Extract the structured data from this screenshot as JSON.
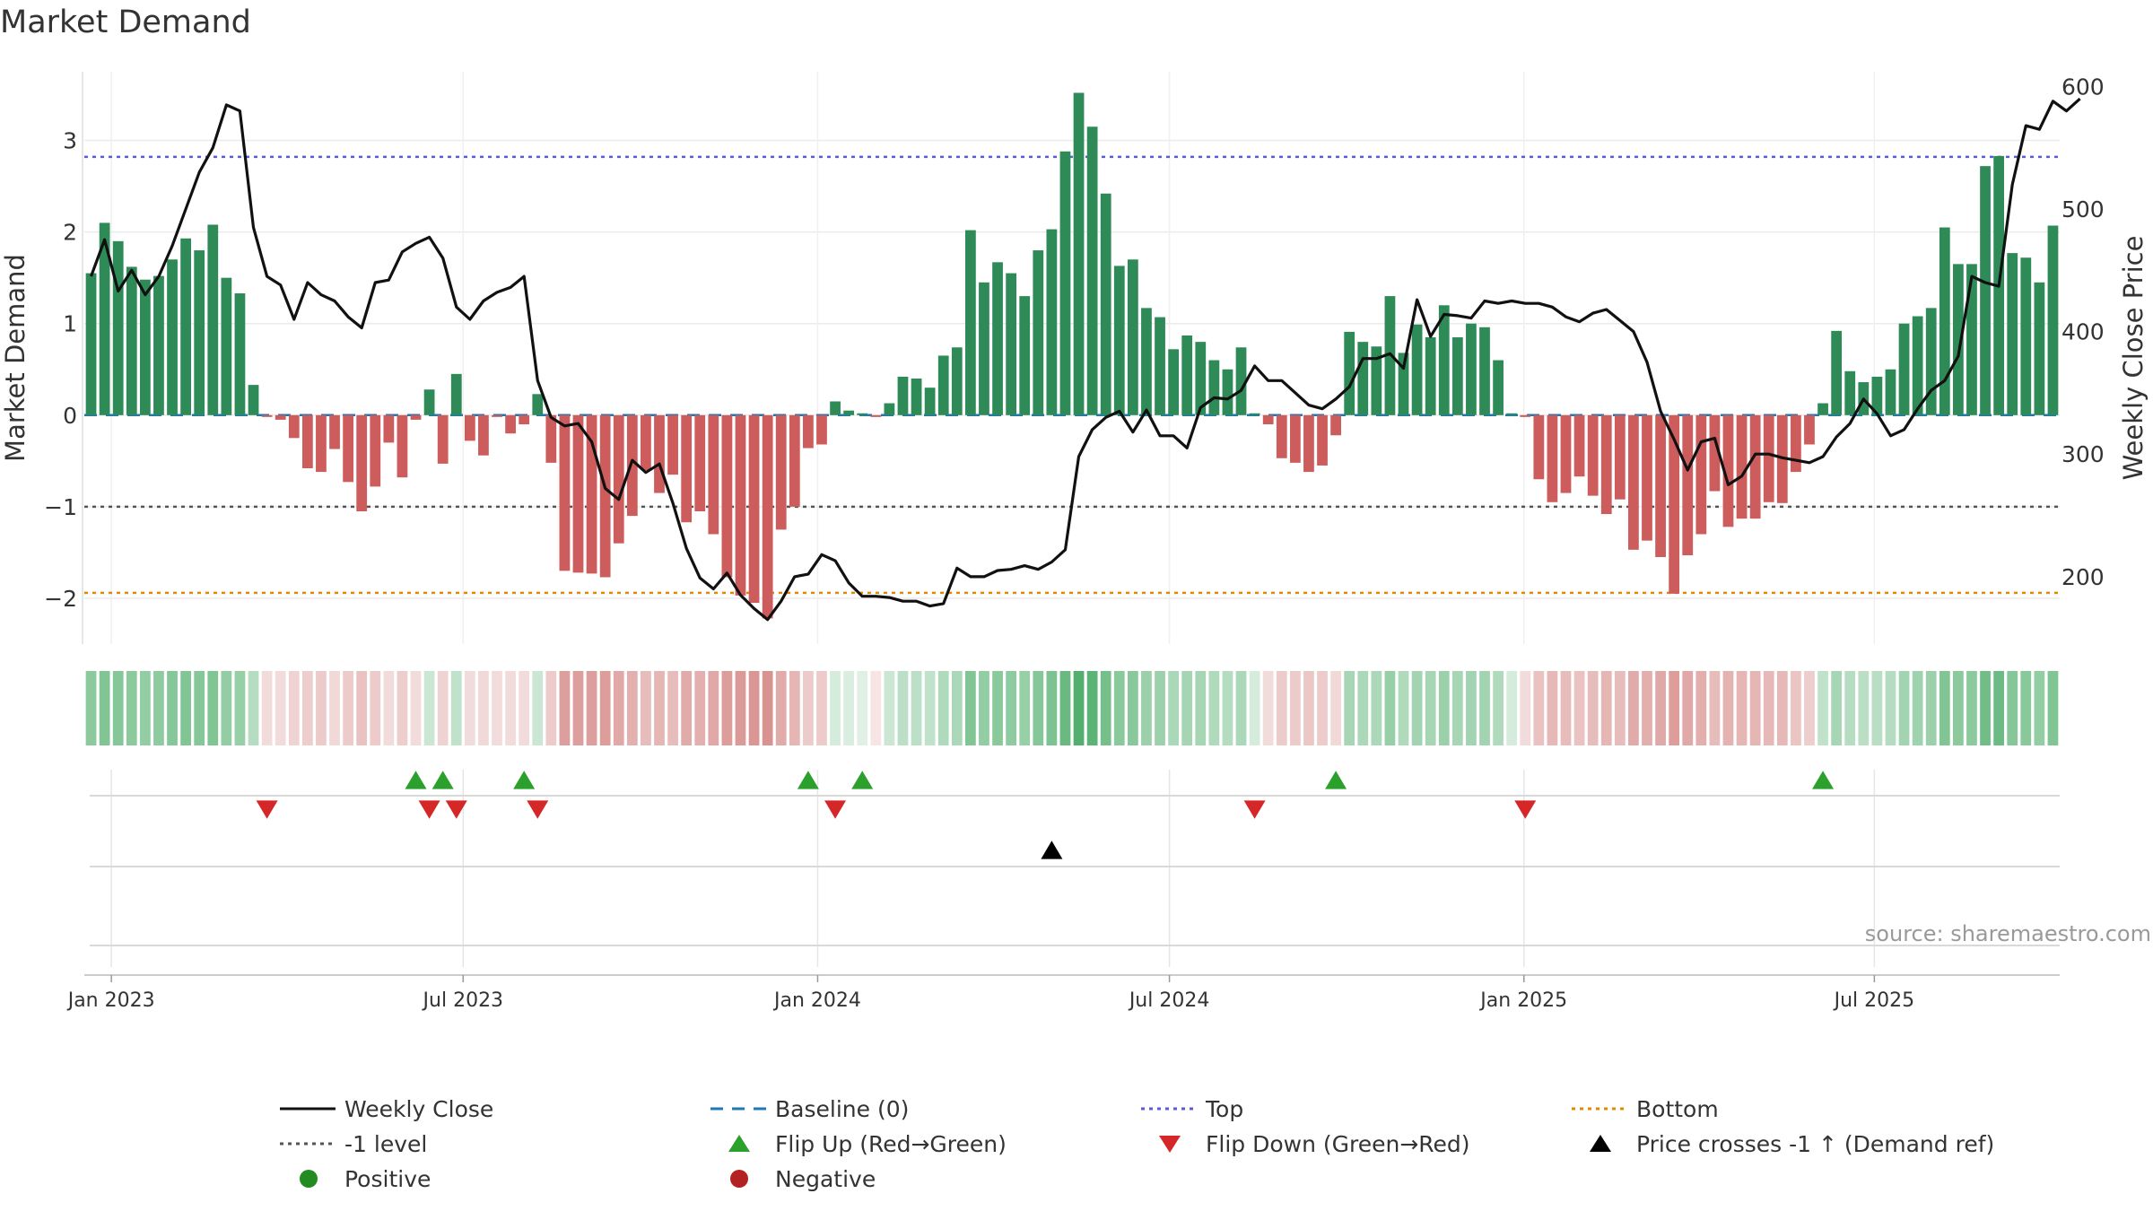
{
  "chart_data": {
    "type": "bar",
    "title": "Market Demand",
    "ylabel_left": "Market Demand",
    "ylabel_right": "Weekly Close Price",
    "ylim_left": [
      -2.5,
      3.75
    ],
    "ylim_right": [
      145,
      612
    ],
    "yticks_left": [
      {
        "value": 3,
        "label": "3"
      },
      {
        "value": 2,
        "label": "2"
      },
      {
        "value": 1,
        "label": "1"
      },
      {
        "value": 0,
        "label": "0"
      },
      {
        "value": -1,
        "label": "−1"
      },
      {
        "value": -2,
        "label": "−2"
      }
    ],
    "yticks_right": [
      {
        "value": 600,
        "label": "600"
      },
      {
        "value": 500,
        "label": "500"
      },
      {
        "value": 400,
        "label": "400"
      },
      {
        "value": 300,
        "label": "300"
      },
      {
        "value": 200,
        "label": "200"
      }
    ],
    "xticks": [
      {
        "index": 1.5,
        "label": "Jan 2023"
      },
      {
        "index": 27.5,
        "label": "Jul 2023"
      },
      {
        "index": 53.7,
        "label": "Jan 2024"
      },
      {
        "index": 79.7,
        "label": "Jul 2024"
      },
      {
        "index": 105.9,
        "label": "Jan 2025"
      },
      {
        "index": 131.8,
        "label": "Jul 2025"
      }
    ],
    "reference_lines": {
      "top": 2.82,
      "minus_one": -1,
      "bottom": -1.94,
      "baseline": 0
    },
    "colors": {
      "positive": "#2e8b57",
      "negative": "#cd5c5c",
      "close": "#111111",
      "baseline": "#1f77b4",
      "top": "#5b5bd6",
      "minus_one": "#555555",
      "bottom": "#e08a00",
      "flip_up": "#2ca02c",
      "flip_down": "#d62728",
      "cross": "#000000",
      "positive_dot": "#228b22",
      "negative_dot": "#b22222"
    },
    "demand": [
      1.55,
      2.1,
      1.9,
      1.62,
      1.48,
      1.52,
      1.7,
      1.93,
      1.8,
      2.08,
      1.5,
      1.33,
      0.33,
      -0.02,
      -0.05,
      -0.25,
      -0.58,
      -0.62,
      -0.37,
      -0.73,
      -1.05,
      -0.78,
      -0.3,
      -0.68,
      -0.05,
      0.28,
      -0.53,
      0.45,
      -0.28,
      -0.44,
      -0.02,
      -0.2,
      -0.1,
      0.23,
      -0.52,
      -1.7,
      -1.72,
      -1.73,
      -1.77,
      -1.4,
      -1.1,
      -0.6,
      -0.85,
      -0.65,
      -1.17,
      -1.05,
      -1.3,
      -1.77,
      -1.97,
      -2.05,
      -2.22,
      -1.25,
      -1.0,
      -0.36,
      -0.32,
      0.15,
      0.05,
      0.02,
      -0.02,
      0.13,
      0.42,
      0.4,
      0.3,
      0.65,
      0.74,
      2.02,
      1.45,
      1.67,
      1.55,
      1.3,
      1.8,
      2.03,
      2.88,
      3.52,
      3.15,
      2.42,
      1.63,
      1.7,
      1.17,
      1.07,
      0.72,
      0.87,
      0.8,
      0.6,
      0.5,
      0.74,
      0.02,
      -0.1,
      -0.47,
      -0.52,
      -0.62,
      -0.55,
      -0.22,
      0.91,
      0.8,
      0.75,
      1.3,
      0.68,
      0.99,
      0.85,
      1.2,
      0.85,
      1.0,
      0.96,
      0.6,
      0.02,
      -0.02,
      -0.7,
      -0.95,
      -0.85,
      -0.67,
      -0.88,
      -1.08,
      -0.92,
      -1.47,
      -1.37,
      -1.55,
      -1.95,
      -1.53,
      -1.3,
      -0.83,
      -1.22,
      -1.13,
      -1.13,
      -0.95,
      -0.96,
      -0.62,
      -0.32,
      0.13,
      0.92,
      0.48,
      0.36,
      0.42,
      0.5,
      1.0,
      1.08,
      1.17,
      2.05,
      1.65,
      1.65,
      2.72,
      2.83,
      1.77,
      1.72,
      1.45,
      2.07
    ],
    "close": [
      445,
      475,
      433,
      450,
      430,
      445,
      470,
      500,
      530,
      550,
      585,
      580,
      485,
      445,
      438,
      410,
      440,
      430,
      425,
      412,
      403,
      440,
      442,
      465,
      472,
      477,
      460,
      420,
      410,
      425,
      432,
      436,
      445,
      360,
      330,
      323,
      325,
      310,
      272,
      263,
      295,
      285,
      292,
      260,
      223,
      199,
      190,
      203,
      185,
      174,
      165,
      180,
      200,
      202,
      218,
      213,
      195,
      184,
      184,
      183,
      180,
      180,
      176,
      178,
      207,
      200,
      200,
      205,
      206,
      209,
      206,
      212,
      222,
      298,
      320,
      330,
      335,
      318,
      336,
      315,
      315,
      305,
      338,
      346,
      345,
      352,
      372,
      360,
      360,
      350,
      340,
      337,
      345,
      355,
      378,
      378,
      382,
      370,
      426,
      396,
      414,
      413,
      411,
      425,
      423,
      425,
      423,
      423,
      420,
      412,
      408,
      415,
      418,
      409,
      400,
      375,
      335,
      312,
      287,
      310,
      313,
      275,
      282,
      300,
      300,
      297,
      295,
      293,
      298,
      314,
      325,
      345,
      333,
      315,
      320,
      337,
      352,
      360,
      380,
      445,
      440,
      437,
      520,
      568,
      565,
      588,
      580,
      590
    ],
    "heat_intensity": [
      0.55,
      0.6,
      0.58,
      0.55,
      0.52,
      0.54,
      0.58,
      0.6,
      0.58,
      0.6,
      0.52,
      0.5,
      0.35,
      0.2,
      0.2,
      0.25,
      0.28,
      0.3,
      0.22,
      0.3,
      0.35,
      0.3,
      0.2,
      0.28,
      0.2,
      0.25,
      0.25,
      0.3,
      0.2,
      0.22,
      0.2,
      0.2,
      0.2,
      0.25,
      0.3,
      0.55,
      0.55,
      0.55,
      0.56,
      0.5,
      0.45,
      0.38,
      0.42,
      0.38,
      0.48,
      0.45,
      0.5,
      0.56,
      0.58,
      0.6,
      0.62,
      0.48,
      0.42,
      0.3,
      0.3,
      0.2,
      0.18,
      0.15,
      0.15,
      0.25,
      0.32,
      0.32,
      0.3,
      0.38,
      0.4,
      0.6,
      0.52,
      0.56,
      0.54,
      0.5,
      0.58,
      0.62,
      0.72,
      0.82,
      0.78,
      0.66,
      0.56,
      0.57,
      0.48,
      0.47,
      0.4,
      0.43,
      0.42,
      0.38,
      0.36,
      0.4,
      0.2,
      0.2,
      0.3,
      0.3,
      0.32,
      0.3,
      0.22,
      0.42,
      0.4,
      0.4,
      0.5,
      0.38,
      0.44,
      0.42,
      0.48,
      0.42,
      0.44,
      0.44,
      0.38,
      0.2,
      0.2,
      0.35,
      0.4,
      0.38,
      0.35,
      0.38,
      0.42,
      0.38,
      0.48,
      0.46,
      0.5,
      0.56,
      0.5,
      0.46,
      0.38,
      0.44,
      0.42,
      0.42,
      0.4,
      0.4,
      0.33,
      0.28,
      0.3,
      0.42,
      0.35,
      0.33,
      0.34,
      0.36,
      0.44,
      0.46,
      0.48,
      0.6,
      0.55,
      0.55,
      0.68,
      0.7,
      0.58,
      0.57,
      0.52,
      0.6
    ],
    "flip_up_indices": [
      24,
      26,
      32,
      53,
      57,
      92,
      128
    ],
    "flip_down_indices": [
      13,
      25,
      27,
      33,
      55,
      86,
      106
    ],
    "cross_indices": [
      71
    ],
    "legend": [
      {
        "key": "close",
        "label": "Weekly Close",
        "style": "line"
      },
      {
        "key": "baseline",
        "label": "Baseline (0)",
        "style": "dash"
      },
      {
        "key": "top",
        "label": "Top",
        "style": "dot"
      },
      {
        "key": "bottom",
        "label": "Bottom",
        "style": "dot"
      },
      {
        "key": "minus_one",
        "label": "-1 level",
        "style": "dot"
      },
      {
        "key": "flip_up",
        "label": "Flip Up (Red→Green)",
        "style": "tri-up"
      },
      {
        "key": "flip_down",
        "label": "Flip Down (Green→Red)",
        "style": "tri-down"
      },
      {
        "key": "cross",
        "label": "Price crosses -1 ↑ (Demand ref)",
        "style": "tri-up"
      },
      {
        "key": "positive_dot",
        "label": "Positive",
        "style": "dot-marker"
      },
      {
        "key": "negative_dot",
        "label": "Negative",
        "style": "dot-marker"
      }
    ],
    "source": "source: sharemaestro.com"
  }
}
